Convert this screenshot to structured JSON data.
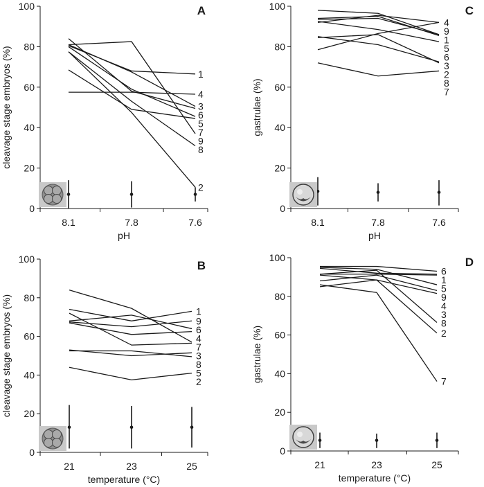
{
  "chart_data": [
    {
      "panel": "A",
      "type": "line",
      "categories": [
        "8.1",
        "7.8",
        "7.6"
      ],
      "xlabel": "pH",
      "ylabel": "cleavage stage embryos (%)",
      "ylim": [
        0,
        100
      ],
      "yticks": [
        0,
        20,
        40,
        60,
        80,
        100
      ],
      "inset_icon": "cleavage-embryo-icon",
      "series": [
        {
          "name": "1",
          "values": [
            80.5,
            68,
            66.5
          ]
        },
        {
          "name": "2",
          "values": [
            77.5,
            47.5,
            10.5
          ]
        },
        {
          "name": "3",
          "values": [
            81,
            67.5,
            50.5
          ]
        },
        {
          "name": "4",
          "values": [
            57.5,
            57.5,
            56.5
          ]
        },
        {
          "name": "5",
          "values": [
            80,
            59,
            45.5
          ]
        },
        {
          "name": "6",
          "values": [
            84,
            58,
            49.5
          ]
        },
        {
          "name": "7",
          "values": [
            68.5,
            49,
            44.5
          ]
        },
        {
          "name": "8",
          "values": [
            77.5,
            53,
            31
          ]
        },
        {
          "name": "9",
          "values": [
            81,
            82.5,
            37
          ]
        }
      ],
      "error_bars": [
        {
          "mean": 7,
          "low": 0,
          "high": 14
        },
        {
          "mean": 7,
          "low": 0.5,
          "high": 13.5
        },
        {
          "mean": 7,
          "low": 3.5,
          "high": 10.5
        }
      ]
    },
    {
      "panel": "B",
      "type": "line",
      "categories": [
        "21",
        "23",
        "25"
      ],
      "xlabel": "temperature (°C)",
      "ylabel": "cleavage stage embryos (%)",
      "ylim": [
        0,
        100
      ],
      "yticks": [
        0,
        20,
        40,
        60,
        80,
        100
      ],
      "inset_icon": "cleavage-embryo-icon",
      "series": [
        {
          "name": "1",
          "values": [
            74,
            68,
            73
          ]
        },
        {
          "name": "2",
          "values": [
            44,
            37.5,
            41
          ]
        },
        {
          "name": "3",
          "values": [
            72,
            55.5,
            56.5
          ]
        },
        {
          "name": "4",
          "values": [
            67,
            61,
            62.5
          ]
        },
        {
          "name": "5",
          "values": [
            52.5,
            52.5,
            49.5
          ]
        },
        {
          "name": "6",
          "values": [
            68,
            71,
            64
          ]
        },
        {
          "name": "7",
          "values": [
            84,
            74.5,
            57
          ]
        },
        {
          "name": "8",
          "values": [
            53,
            50,
            51.5
          ]
        },
        {
          "name": "9",
          "values": [
            67.5,
            65,
            68
          ]
        }
      ],
      "error_bars": [
        {
          "mean": 13,
          "low": 2,
          "high": 24.5
        },
        {
          "mean": 13,
          "low": 2,
          "high": 24
        },
        {
          "mean": 13,
          "low": 2.5,
          "high": 23.5
        }
      ]
    },
    {
      "panel": "C",
      "type": "line",
      "categories": [
        "8.1",
        "7.8",
        "7.6"
      ],
      "xlabel": "pH",
      "ylabel": "gastrulae (%)",
      "ylim": [
        0,
        100
      ],
      "yticks": [
        0,
        20,
        40,
        60,
        80,
        100
      ],
      "inset_icon": "gastrula-embryo-icon",
      "series": [
        {
          "name": "1",
          "values": [
            93.5,
            94,
            86
          ]
        },
        {
          "name": "2",
          "values": [
            85,
            81,
            72.5
          ]
        },
        {
          "name": "3",
          "values": [
            92.5,
            88.5,
            82.5
          ]
        },
        {
          "name": "4",
          "values": [
            92,
            95.5,
            92
          ]
        },
        {
          "name": "5",
          "values": [
            98,
            96.5,
            86
          ]
        },
        {
          "name": "6",
          "values": [
            94,
            95,
            85.5
          ]
        },
        {
          "name": "7",
          "values": [
            72,
            65.5,
            68
          ]
        },
        {
          "name": "8",
          "values": [
            84.5,
            86,
            72
          ]
        },
        {
          "name": "9",
          "values": [
            78.5,
            86.5,
            92
          ]
        }
      ],
      "error_bars": [
        {
          "mean": 8.5,
          "low": 1.5,
          "high": 15.5
        },
        {
          "mean": 8,
          "low": 3.5,
          "high": 12.5
        },
        {
          "mean": 8,
          "low": 1.5,
          "high": 14
        }
      ]
    },
    {
      "panel": "D",
      "type": "line",
      "categories": [
        "21",
        "23",
        "25"
      ],
      "xlabel": "temperature (°C)",
      "ylabel": "gastrulae (%)",
      "ylim": [
        0,
        100
      ],
      "yticks": [
        0,
        20,
        40,
        60,
        80,
        100
      ],
      "inset_icon": "gastrula-embryo-icon",
      "series": [
        {
          "name": "1",
          "values": [
            94.5,
            92,
            91.5
          ]
        },
        {
          "name": "2",
          "values": [
            85,
            88.5,
            61
          ]
        },
        {
          "name": "3",
          "values": [
            91,
            88.5,
            81.5
          ]
        },
        {
          "name": "4",
          "values": [
            88,
            91,
            83
          ]
        },
        {
          "name": "5",
          "values": [
            91.5,
            91.5,
            91
          ]
        },
        {
          "name": "6",
          "values": [
            95.5,
            95.5,
            93
          ]
        },
        {
          "name": "7",
          "values": [
            86,
            82,
            36
          ]
        },
        {
          "name": "8",
          "values": [
            91.5,
            93.5,
            66.5
          ]
        },
        {
          "name": "9",
          "values": [
            95,
            94,
            86
          ]
        }
      ],
      "error_bars": [
        {
          "mean": 5.5,
          "low": 1.5,
          "high": 9.5
        },
        {
          "mean": 5.5,
          "low": 1.5,
          "high": 9
        },
        {
          "mean": 5.5,
          "low": 1.5,
          "high": 9.5
        }
      ]
    }
  ]
}
